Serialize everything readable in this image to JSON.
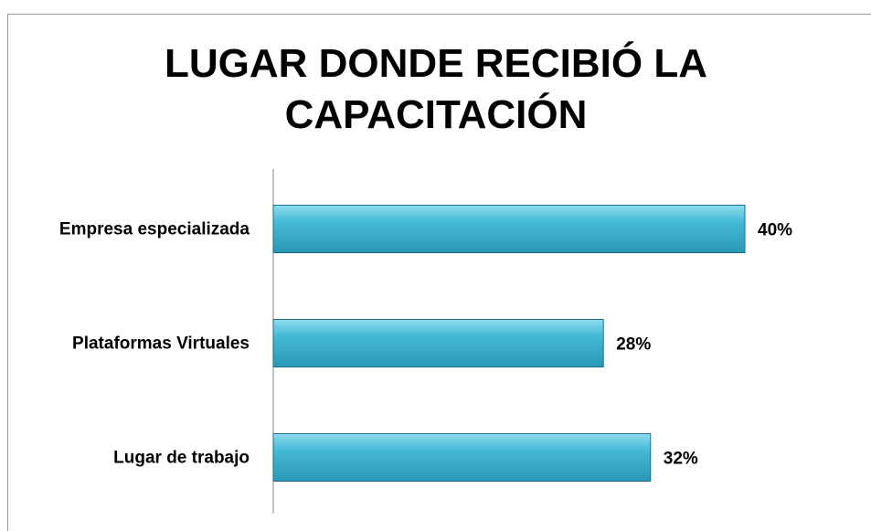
{
  "chart_data": {
    "type": "bar",
    "orientation": "horizontal",
    "title": "LUGAR DONDE RECIBIÓ LA CAPACITACIÓN",
    "categories": [
      "Empresa especializada",
      "Plataformas Virtuales",
      "Lugar de trabajo"
    ],
    "values": [
      40,
      28,
      32
    ],
    "value_labels": [
      "40%",
      "28%",
      "32%"
    ],
    "color": "#3db3d0",
    "xlim": [
      0,
      50
    ]
  }
}
